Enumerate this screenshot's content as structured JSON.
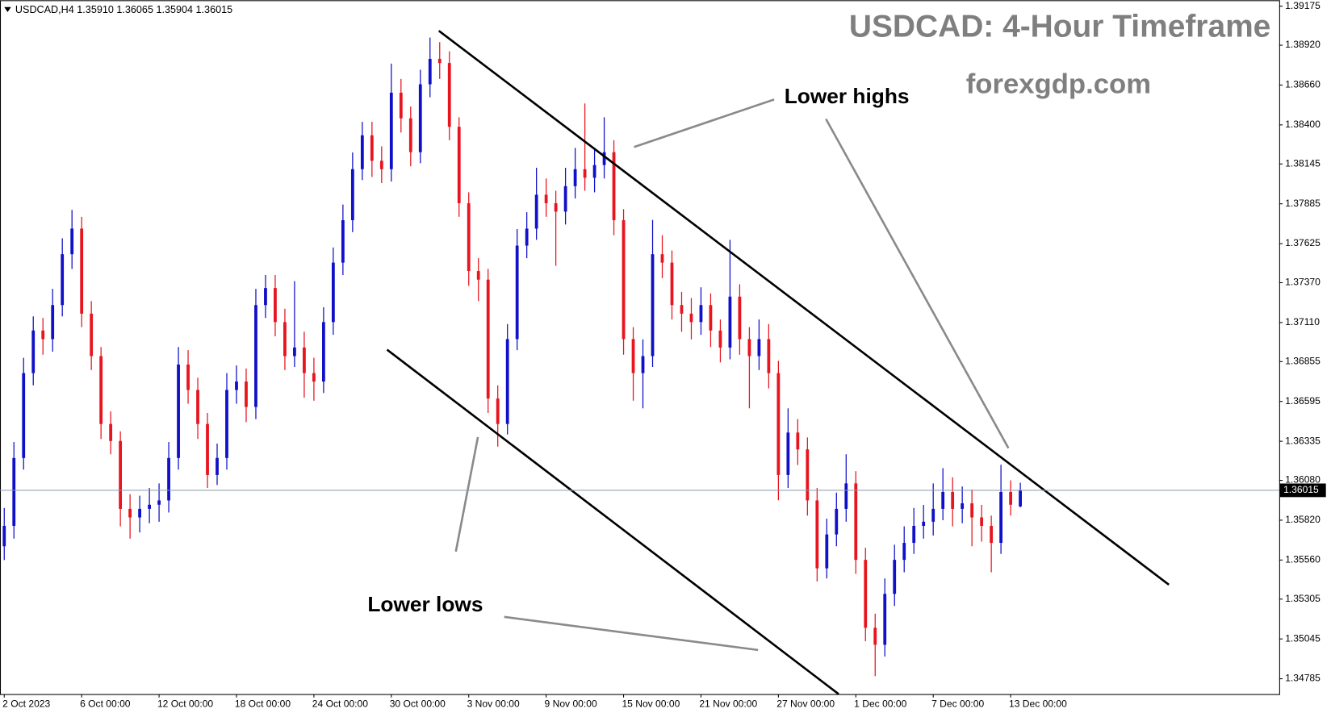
{
  "chart_data": {
    "type": "candlestick",
    "title": "USDCAD: 4-Hour Timeframe",
    "subtitle": "forexgdp.com",
    "header": "USDCAD,H4  1.35910 1.36065 1.35904 1.36015",
    "annotations": [
      "Lower highs",
      "Lower lows"
    ],
    "up_color": "#1010c8",
    "down_color": "#e8141e",
    "price_line_color": "#8899aa",
    "last_price": 1.36015,
    "ylim": [
      1.34685,
      1.39208
    ],
    "yticks": [
      1.39175,
      {
        "value": 1.3892,
        "label": "1.38920"
      },
      {
        "value": 1.3866,
        "label": "1.38660"
      },
      {
        "value": 1.384,
        "label": "1.38400"
      },
      1.38145,
      1.37885,
      1.37625,
      {
        "value": 1.3737,
        "label": "1.37370"
      },
      {
        "value": 1.3711,
        "label": "1.37110"
      },
      1.36855,
      1.36595,
      1.36335,
      {
        "value": 1.3608,
        "label": "1.36080"
      },
      {
        "value": 1.3582,
        "label": "1.35820"
      },
      {
        "value": 1.3556,
        "label": "1.35560"
      },
      1.35305,
      1.35045,
      1.34785
    ],
    "categories": [
      "2 Oct 2023",
      null,
      null,
      null,
      null,
      null,
      null,
      null,
      "6 Oct 00:00",
      null,
      null,
      null,
      null,
      null,
      null,
      null,
      "12 Oct 00:00",
      null,
      null,
      null,
      null,
      null,
      null,
      null,
      "18 Oct 00:00",
      null,
      null,
      null,
      null,
      null,
      null,
      null,
      "24 Oct 00:00",
      null,
      null,
      null,
      null,
      null,
      null,
      null,
      "30 Oct 00:00",
      null,
      null,
      null,
      null,
      null,
      null,
      null,
      "3 Nov 00:00",
      null,
      null,
      null,
      null,
      null,
      null,
      null,
      "9 Nov 00:00",
      null,
      null,
      null,
      null,
      null,
      null,
      null,
      "15 Nov 00:00",
      null,
      null,
      null,
      null,
      null,
      null,
      null,
      "21 Nov 00:00",
      null,
      null,
      null,
      null,
      null,
      null,
      null,
      "27 Nov 00:00",
      null,
      null,
      null,
      null,
      null,
      null,
      null,
      "1 Dec 00:00",
      null,
      null,
      null,
      null,
      null,
      null,
      null,
      "7 Dec 00:00",
      null,
      null,
      null,
      null,
      null,
      null,
      null,
      "13 Dec 00:00",
      null
    ],
    "open": [
      1.3565,
      1.35783,
      1.36226,
      1.3678,
      1.37058,
      1.37002,
      1.37224,
      1.37556,
      1.37723,
      1.37168,
      1.36891,
      1.36448,
      1.36337,
      1.35894,
      1.35838,
      1.35894,
      1.35921,
      1.35949,
      1.36226,
      1.36836,
      1.3667,
      1.36448,
      1.36115,
      1.36226,
      1.3667,
      1.36725,
      1.36559,
      1.37224,
      1.37335,
      1.37113,
      1.36891,
      1.36947,
      1.3678,
      1.36725,
      1.37113,
      1.37501,
      1.37778,
      1.38111,
      1.38332,
      1.38166,
      1.38111,
      1.3861,
      1.38443,
      1.38222,
      1.38665,
      1.38831,
      1.38804,
      1.38388,
      1.37889,
      1.37446,
      1.3739,
      1.36614,
      1.36448,
      1.37002,
      1.37612,
      1.37723,
      1.37944,
      1.37889,
      1.37834,
      1.38,
      1.38111,
      1.38055,
      1.38138,
      1.38222,
      1.37778,
      1.37002,
      1.3678,
      1.36891,
      1.37556,
      1.37501,
      1.37224,
      1.37168,
      1.37113,
      1.37224,
      1.37058,
      1.36947,
      1.37279,
      1.37002,
      1.36891,
      1.37002,
      1.3678,
      1.36115,
      1.36392,
      1.36282,
      1.35949,
      1.35506,
      1.35727,
      1.35894,
      1.3606,
      1.35561,
      1.35118,
      1.35007,
      1.35339,
      1.35561,
      1.35672,
      1.35783,
      1.3581,
      1.35894,
      1.36004,
      1.35894,
      1.3593,
      1.35838,
      1.35783,
      1.35672,
      1.36004,
      1.3591
    ],
    "high": [
      1.359,
      1.3633,
      1.3688,
      1.3715,
      1.3714,
      1.3733,
      1.3766,
      1.37845,
      1.378,
      1.3725,
      1.3695,
      1.3653,
      1.364,
      1.3599,
      1.3598,
      1.3603,
      1.3606,
      1.3633,
      1.3695,
      1.3693,
      1.3675,
      1.3652,
      1.3632,
      1.3678,
      1.3683,
      1.3681,
      1.3733,
      1.3742,
      1.3742,
      1.372,
      1.3738,
      1.3705,
      1.3688,
      1.3721,
      1.376,
      1.3788,
      1.3822,
      1.3842,
      1.3842,
      1.3826,
      1.388,
      1.387,
      1.3852,
      1.3876,
      1.3897,
      1.3894,
      1.3888,
      1.3845,
      1.3796,
      1.3753,
      1.3746,
      1.367,
      1.371,
      1.3772,
      1.3783,
      1.3812,
      1.3805,
      1.3797,
      1.3812,
      1.3825,
      1.3854,
      1.3825,
      1.3845,
      1.383,
      1.3785,
      1.3708,
      1.37,
      1.3778,
      1.3768,
      1.3758,
      1.3731,
      1.3727,
      1.3734,
      1.373,
      1.3713,
      1.3765,
      1.3736,
      1.3708,
      1.3713,
      1.371,
      1.3686,
      1.3655,
      1.3648,
      1.3636,
      1.3603,
      1.3583,
      1.36,
      1.3625,
      1.3614,
      1.3564,
      1.3521,
      1.3544,
      1.3566,
      1.3578,
      1.359,
      1.3592,
      1.3606,
      1.3616,
      1.361,
      1.3604,
      1.3602,
      1.3592,
      1.3585,
      1.36182,
      1.3608,
      1.36065
    ],
    "low": [
      1.3556,
      1.357,
      1.3615,
      1.367,
      1.369,
      1.3692,
      1.3715,
      1.3746,
      1.3708,
      1.368,
      1.3635,
      1.3625,
      1.3578,
      1.357,
      1.3574,
      1.358,
      1.3581,
      1.3587,
      1.3615,
      1.3658,
      1.3635,
      1.3603,
      1.3605,
      1.3615,
      1.3658,
      1.3646,
      1.3648,
      1.3714,
      1.3702,
      1.368,
      1.3682,
      1.3662,
      1.366,
      1.3665,
      1.3703,
      1.3742,
      1.377,
      1.3804,
      1.3806,
      1.3802,
      1.3803,
      1.3835,
      1.3813,
      1.3815,
      1.3858,
      1.387,
      1.383,
      1.378,
      1.3735,
      1.3725,
      1.3652,
      1.363,
      1.3638,
      1.3693,
      1.3753,
      1.3765,
      1.378,
      1.3748,
      1.3775,
      1.3792,
      1.3797,
      1.3796,
      1.3805,
      1.3768,
      1.369,
      1.366,
      1.3655,
      1.3682,
      1.374,
      1.3713,
      1.3705,
      1.37,
      1.3703,
      1.3695,
      1.3685,
      1.3687,
      1.369,
      1.3655,
      1.368,
      1.3668,
      1.3595,
      1.3603,
      1.3618,
      1.3585,
      1.3542,
      1.3544,
      1.3565,
      1.3581,
      1.3547,
      1.3503,
      1.34802,
      1.3493,
      1.3526,
      1.3548,
      1.356,
      1.357,
      1.3572,
      1.3582,
      1.3578,
      1.358,
      1.3565,
      1.3568,
      1.3548,
      1.356,
      1.3585,
      1.35904
    ],
    "close": [
      1.35783,
      1.36226,
      1.3678,
      1.37058,
      1.37002,
      1.37224,
      1.37556,
      1.37723,
      1.37168,
      1.36891,
      1.36448,
      1.36337,
      1.35894,
      1.35838,
      1.35894,
      1.35921,
      1.35949,
      1.36226,
      1.36836,
      1.3667,
      1.36448,
      1.36115,
      1.36226,
      1.3667,
      1.36725,
      1.36559,
      1.37224,
      1.37335,
      1.37113,
      1.36891,
      1.36947,
      1.3678,
      1.36725,
      1.37113,
      1.37501,
      1.37778,
      1.38111,
      1.38332,
      1.38166,
      1.38111,
      1.3861,
      1.38443,
      1.38222,
      1.38665,
      1.38831,
      1.38804,
      1.38388,
      1.37889,
      1.37446,
      1.3739,
      1.36614,
      1.36448,
      1.37002,
      1.37612,
      1.37723,
      1.37944,
      1.37889,
      1.37834,
      1.38,
      1.38111,
      1.38055,
      1.38138,
      1.38222,
      1.37778,
      1.37002,
      1.3678,
      1.36891,
      1.37556,
      1.37501,
      1.37224,
      1.37168,
      1.37113,
      1.37224,
      1.37058,
      1.36947,
      1.37279,
      1.37002,
      1.36891,
      1.37002,
      1.3678,
      1.36115,
      1.36392,
      1.36282,
      1.35949,
      1.35506,
      1.35727,
      1.35894,
      1.3606,
      1.35561,
      1.35118,
      1.35007,
      1.35339,
      1.35561,
      1.35672,
      1.35783,
      1.3581,
      1.35894,
      1.36004,
      1.35894,
      1.3593,
      1.35838,
      1.35783,
      1.35672,
      1.36004,
      1.35921,
      1.36015
    ]
  }
}
